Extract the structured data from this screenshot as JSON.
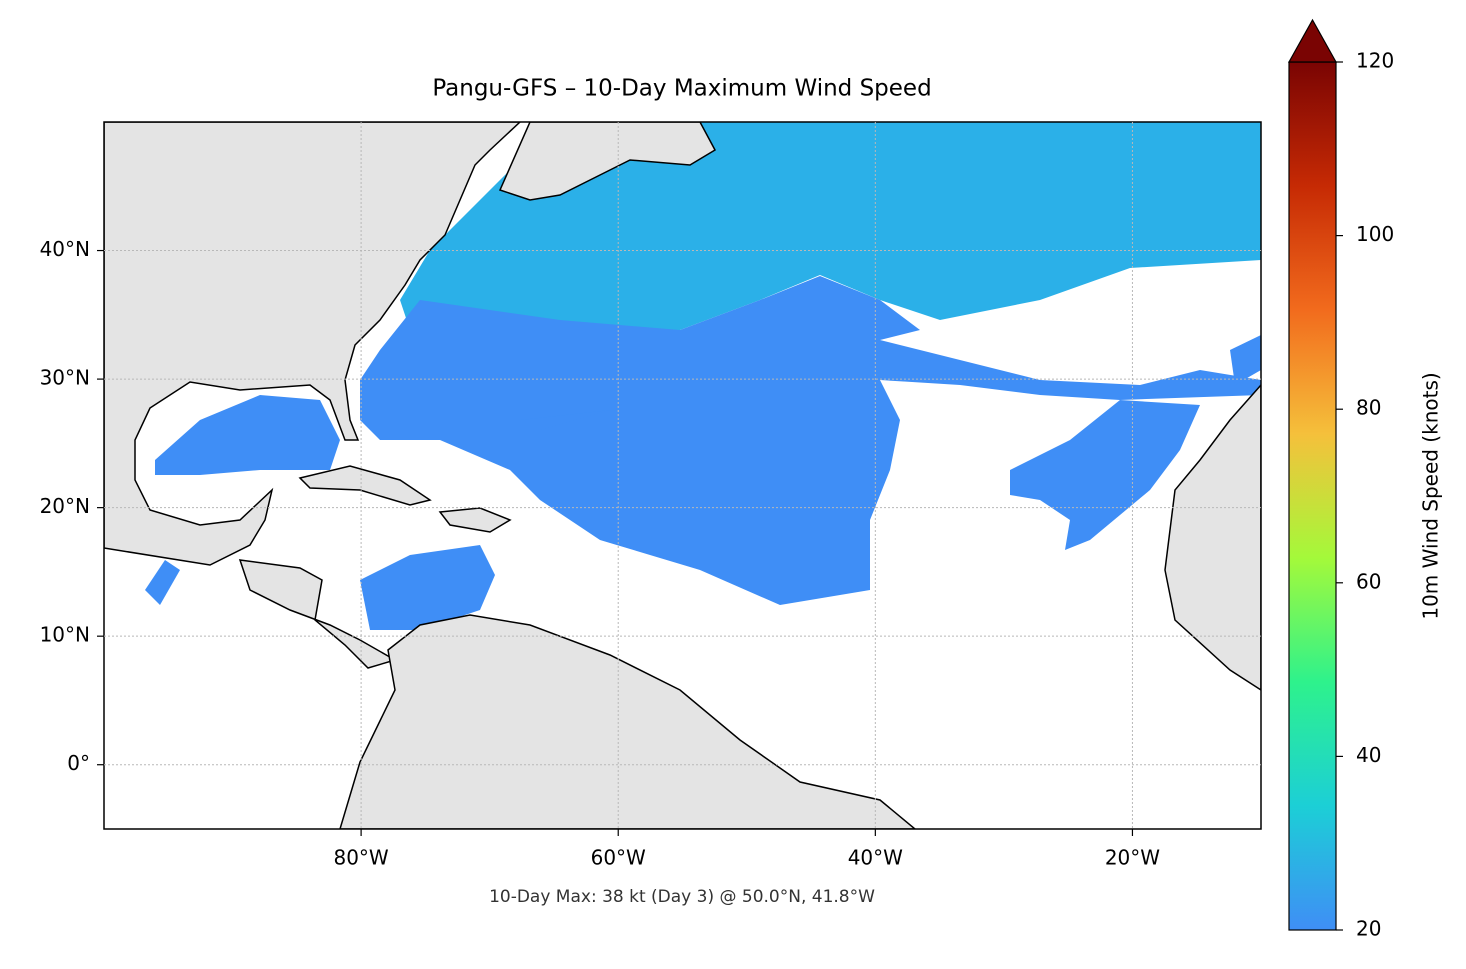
{
  "chart_data": {
    "type": "map",
    "title": "Pangu-GFS – 10-Day Maximum Wind Speed",
    "annotation": "10-Day Max: 38 kt (Day 3) @ 50.0°N, 41.8°W",
    "xlim": [
      -100,
      -10
    ],
    "ylim": [
      -5,
      50
    ],
    "xticks": [
      {
        "value": -80,
        "label": "80°W"
      },
      {
        "value": -60,
        "label": "60°W"
      },
      {
        "value": -40,
        "label": "40°W"
      },
      {
        "value": -20,
        "label": "20°W"
      }
    ],
    "yticks": [
      {
        "value": 0,
        "label": "0°"
      },
      {
        "value": 10,
        "label": "10°N"
      },
      {
        "value": 20,
        "label": "20°N"
      },
      {
        "value": 30,
        "label": "30°N"
      },
      {
        "value": 40,
        "label": "40°N"
      }
    ],
    "grid": true,
    "colorbar": {
      "label": "10m Wind Speed (knots)",
      "ylim": [
        20,
        120
      ],
      "yticks": [
        20,
        40,
        60,
        80,
        100,
        120
      ],
      "colors": [
        "#3f8ef6",
        "#1ccfd6",
        "#2ef28c",
        "#a4f93a",
        "#f5c03b",
        "#f26b1d",
        "#c62a04",
        "#7a0403"
      ]
    }
  }
}
